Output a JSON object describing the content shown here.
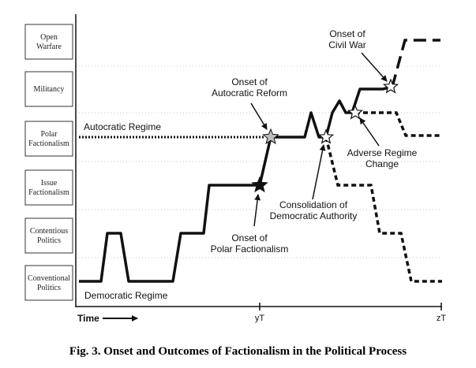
{
  "levels": [
    "Conventional Politics",
    "Contentious Politics",
    "Issue Factionalism",
    "Polar Factionalism",
    "Militancy",
    "Open Warfare"
  ],
  "level_lines": [
    [
      "Conventional",
      "Politics"
    ],
    [
      "Contentious",
      "Politics"
    ],
    [
      "Issue",
      "Factionalism"
    ],
    [
      "Polar",
      "Factionalism"
    ],
    [
      "Militancy"
    ],
    [
      "Open",
      "Warfare"
    ]
  ],
  "regime_labels": {
    "autocratic": "Autocratic Regime",
    "democratic": "Democratic Regime"
  },
  "annotations": {
    "onset_polar": [
      "Onset of",
      "Polar Factionalism"
    ],
    "onset_autocratic": [
      "Onset of",
      "Autocratic Reform"
    ],
    "consolidation": [
      "Consolidation of",
      "Democratic Authority"
    ],
    "adverse_change": [
      "Adverse Regime",
      "Change"
    ],
    "civil_war": [
      "Onset of",
      "Civil War"
    ]
  },
  "axis": {
    "time_label": "Time",
    "ticks": [
      "yT",
      "zT"
    ]
  },
  "caption": "Fig. 3. Onset and Outcomes of Factionalism in the Political Process"
}
